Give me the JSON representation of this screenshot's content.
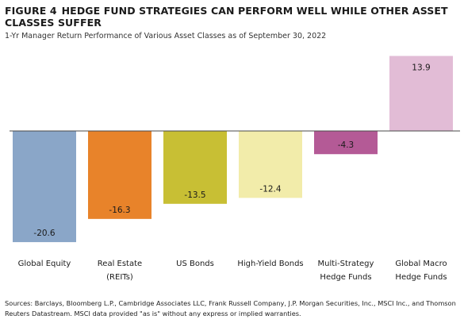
{
  "figure": {
    "label": "FIGURE 4",
    "title": "HEDGE FUND STRATEGIES CAN PERFORM WELL WHILE OTHER ASSET CLASSES SUFFER",
    "subtitle": "1-Yr Manager Return Performance of Various Asset Classes as of September 30, 2022",
    "source": "Sources: Barclays, Bloomberg L.P., Cambridge Associates LLC, Frank Russell Company, J.P. Morgan Securities, Inc., MSCI Inc., and Thomson Reuters Datastream. MSCI data provided \"as is\" without any express or implied warranties."
  },
  "chart_data": {
    "type": "bar",
    "categories": [
      [
        "Global Equity"
      ],
      [
        "Real Estate",
        "(REITs)"
      ],
      [
        "US Bonds"
      ],
      [
        "High-Yield Bonds"
      ],
      [
        "Multi-Strategy",
        "Hedge Funds"
      ],
      [
        "Global Macro",
        "Hedge Funds"
      ]
    ],
    "values": [
      -20.6,
      -16.3,
      -13.5,
      -12.4,
      -4.3,
      13.9
    ],
    "value_labels": [
      "-20.6",
      "-16.3",
      "-13.5",
      "-12.4",
      "-4.3",
      "13.9"
    ],
    "colors": [
      "#8aa6c8",
      "#e8832a",
      "#c8bf34",
      "#f2ecaa",
      "#b45a96",
      "#e2bcd6"
    ],
    "ylim": [
      -20.6,
      13.9
    ],
    "grid": false,
    "legend": "none"
  }
}
